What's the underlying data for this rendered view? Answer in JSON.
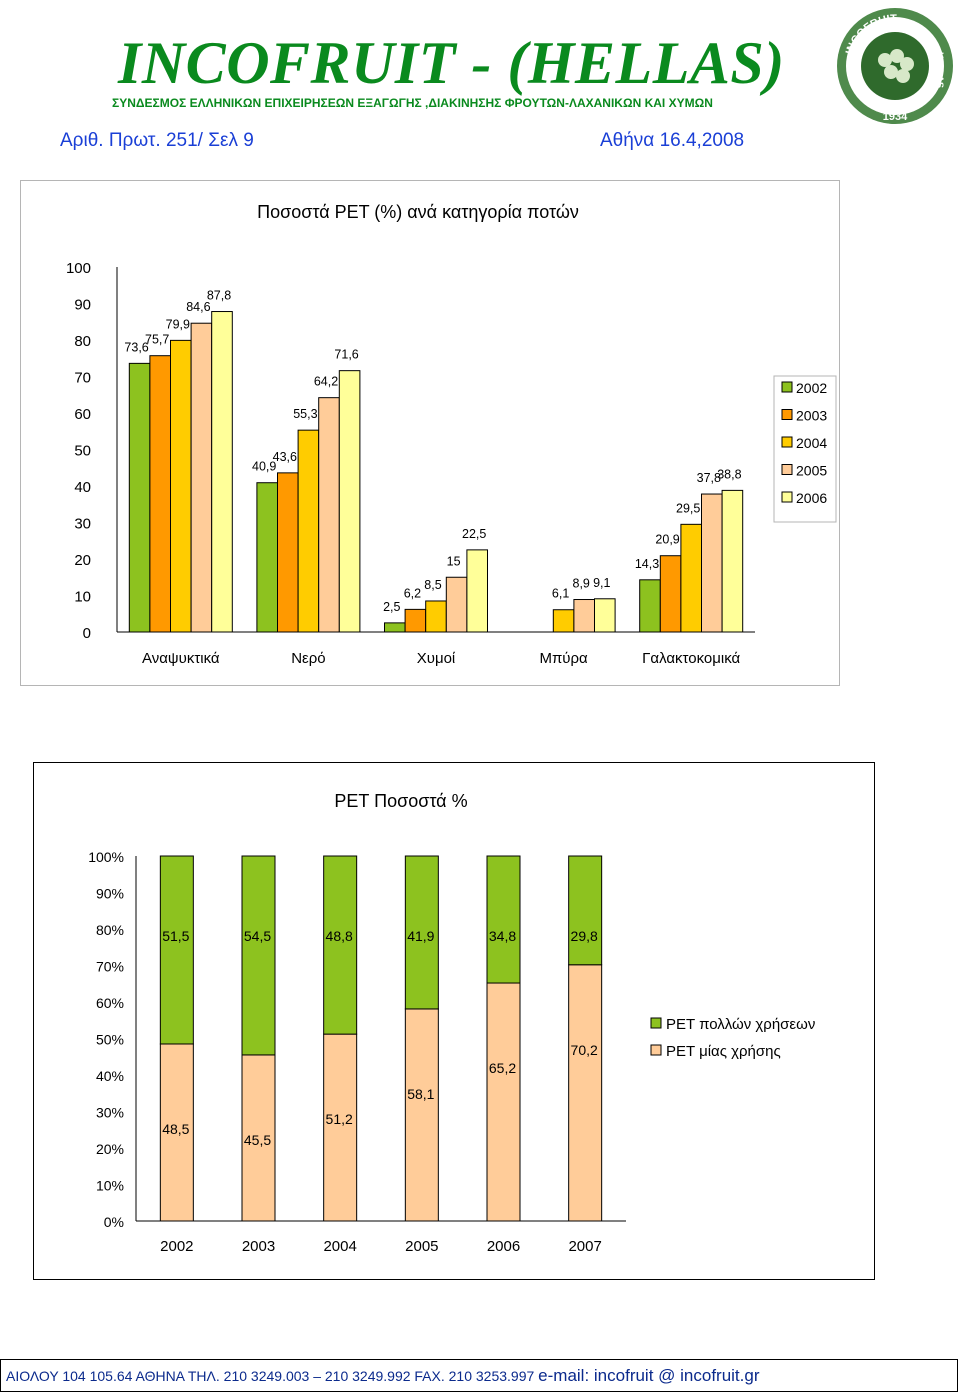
{
  "header": {
    "title": "INCOFRUIT - (HELLAS)",
    "subtitle": "ΣΥΝΔΕΣΜΟΣ ΕΛΛΗΝΙΚΩΝ ΕΠΙΧΕΙΡΗΣΕΩΝ ΕΞΑΓΩΓΗΣ ,ΔΙΑΚΙΝΗΣΗΣ ΦΡΟΥΤΩΝ-ΛΑΧΑΝΙΚΩΝ ΚΑΙ ΧΥΜΩΝ",
    "reference": "Αριθ. Πρωτ. 251/ Σελ 9",
    "date": "Αθήνα 16.4,2008",
    "logo": {
      "top_text": "INCOFRUIT",
      "side_text": "HELLAS",
      "year": "1934"
    }
  },
  "colors": {
    "title_green": "#0a8a1e",
    "blue_text": "#1a3fd6",
    "footer_text": "#0b2a8c",
    "y2002": "#8dc21f",
    "y2003": "#ff9900",
    "y2004": "#ffcc00",
    "y2005": "#ffcc99",
    "y2006": "#ffff99",
    "pet_multi": "#8dc21f",
    "pet_single": "#ffcc99"
  },
  "chart_data": [
    {
      "type": "bar",
      "title": "Ποσοστά PET (%) ανά κατηγορία ποτών",
      "categories": [
        "Αναψυκτικά",
        "Νερό",
        "Χυμοί",
        "Μπύρα",
        "Γαλακτοκομικά"
      ],
      "ylim": [
        0,
        100
      ],
      "yticks": [
        0,
        10,
        20,
        30,
        40,
        50,
        60,
        70,
        80,
        90,
        100
      ],
      "legend_position": "right",
      "grid": false,
      "series": [
        {
          "name": "2002",
          "color": "#8dc21f",
          "values": [
            73.6,
            40.9,
            2.5,
            null,
            14.3
          ],
          "labels": [
            "73,6",
            "40,9",
            "2,5",
            "",
            "14,3"
          ]
        },
        {
          "name": "2003",
          "color": "#ff9900",
          "values": [
            75.7,
            43.6,
            6.2,
            null,
            20.9
          ],
          "labels": [
            "75,7",
            "43,6",
            "6,2",
            "",
            "20,9"
          ]
        },
        {
          "name": "2004",
          "color": "#ffcc00",
          "values": [
            79.9,
            55.3,
            8.5,
            6.1,
            29.5
          ],
          "labels": [
            "79,9",
            "55,3",
            "8,5",
            "6,1",
            "29,5"
          ]
        },
        {
          "name": "2005",
          "color": "#ffcc99",
          "values": [
            84.6,
            64.2,
            15,
            8.9,
            37.8
          ],
          "labels": [
            "84,6",
            "64,2",
            "15",
            "8,9",
            "37,8"
          ]
        },
        {
          "name": "2006",
          "color": "#ffff99",
          "values": [
            87.8,
            71.6,
            22.5,
            9.1,
            38.8
          ],
          "labels": [
            "87,8",
            "71,6",
            "22,5",
            "9,1",
            "38,8"
          ]
        }
      ]
    },
    {
      "type": "bar",
      "stacked": "percent",
      "title": "PET Ποσοστά %",
      "categories": [
        "2002",
        "2003",
        "2004",
        "2005",
        "2006",
        "2007"
      ],
      "ylim": [
        0,
        100
      ],
      "yticks": [
        "0%",
        "10%",
        "20%",
        "30%",
        "40%",
        "50%",
        "60%",
        "70%",
        "80%",
        "90%",
        "100%"
      ],
      "legend_position": "right",
      "grid": false,
      "series": [
        {
          "name": "PET μίας χρήσης",
          "color": "#ffcc99",
          "values": [
            48.5,
            45.5,
            51.2,
            58.1,
            65.2,
            70.2
          ],
          "labels": [
            "48,5",
            "45,5",
            "51,2",
            "58,1",
            "65,2",
            "70,2"
          ]
        },
        {
          "name": "PET πολλών χρήσεων",
          "color": "#8dc21f",
          "values": [
            51.5,
            54.5,
            48.8,
            41.9,
            34.8,
            29.8
          ],
          "labels": [
            "51,5",
            "54,5",
            "48,8",
            "41,9",
            "34,8",
            "29,8"
          ]
        }
      ]
    }
  ],
  "footer": {
    "address": "ΑΙΟΛΟΥ  104 105.64 ΑΘΗΝΑ   ΤΗΛ.  210 3249.003 – 210 3249.992  FAX. 210 3253.997",
    "email": "e-mail: incofruit @ incofruit.gr"
  }
}
